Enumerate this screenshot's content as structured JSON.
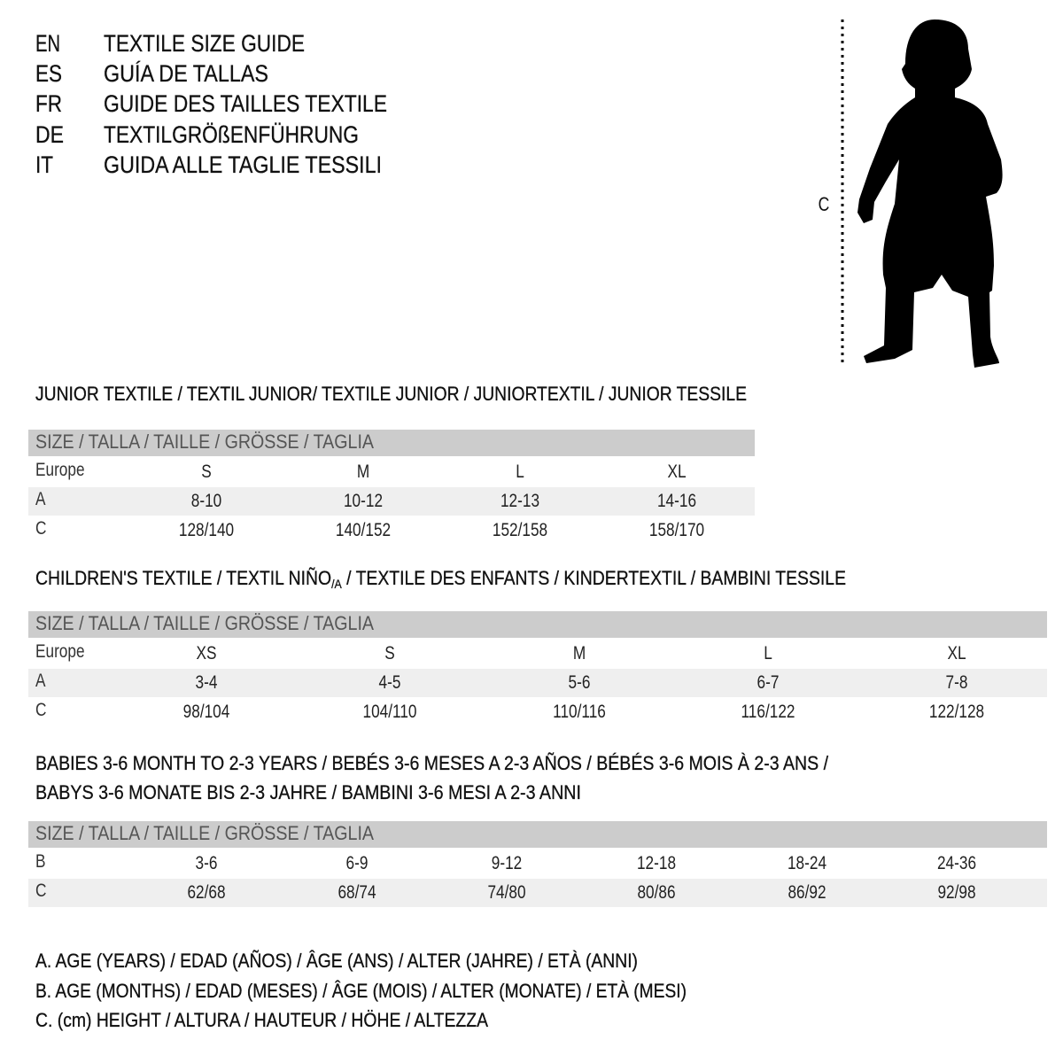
{
  "languages": [
    {
      "code": "EN",
      "title": "TEXTILE SIZE GUIDE"
    },
    {
      "code": "ES",
      "title": "GUÍA DE TALLAS"
    },
    {
      "code": "FR",
      "title": "GUIDE DES TAILLES TEXTILE"
    },
    {
      "code": "DE",
      "title": "TEXTILGRÖßENFÜHRUNG"
    },
    {
      "code": "IT",
      "title": "GUIDA ALLE TAGLIE TESSILI"
    }
  ],
  "figure": {
    "measure_label": "C",
    "icon": "child-silhouette"
  },
  "size_header": "SIZE / TALLA / TAILLE / GRÖSSE / TAGLIA",
  "junior": {
    "title": "JUNIOR TEXTILE / TEXTIL JUNIOR/ TEXTILE JUNIOR / JUNIORTEXTIL / JUNIOR TESSILE",
    "rows": [
      {
        "label": "Europe",
        "values": [
          "S",
          "M",
          "L",
          "XL"
        ]
      },
      {
        "label": "A",
        "values": [
          "8-10",
          "10-12",
          "12-13",
          "14-16"
        ]
      },
      {
        "label": "C",
        "values": [
          "128/140",
          "140/152",
          "152/158",
          "158/170"
        ]
      }
    ]
  },
  "children": {
    "title_pre": "CHILDREN'S TEXTILE / TEXTIL NIÑO",
    "title_sub": "/A",
    "title_post": " / TEXTILE DES ENFANTS / KINDERTEXTIL / BAMBINI TESSILE",
    "rows": [
      {
        "label": "Europe",
        "values": [
          "XS",
          "S",
          "M",
          "L",
          "XL"
        ]
      },
      {
        "label": "A",
        "values": [
          "3-4",
          "4-5",
          "5-6",
          "6-7",
          "7-8"
        ]
      },
      {
        "label": "C",
        "values": [
          "98/104",
          "104/110",
          "110/116",
          "116/122",
          "122/128"
        ]
      }
    ]
  },
  "babies": {
    "title_line1": "BABIES 3-6 MONTH TO 2-3 YEARS / BEBÉS 3-6 MESES A 2-3 AÑOS / BÉBÉS 3-6 MOIS À 2-3 ANS /",
    "title_line2": "BABYS 3-6 MONATE BIS 2-3 JAHRE / BAMBINI 3-6 MESI A 2-3 ANNI",
    "rows": [
      {
        "label": "B",
        "values": [
          "3-6",
          "6-9",
          "9-12",
          "12-18",
          "18-24",
          "24-36"
        ]
      },
      {
        "label": "C",
        "values": [
          "62/68",
          "68/74",
          "74/80",
          "80/86",
          "86/92",
          "92/98"
        ]
      }
    ]
  },
  "legend": [
    "A. AGE (YEARS) / EDAD (AÑOS) / ÂGE (ANS) / ALTER (JAHRE) / ETÀ (ANNI)",
    "B. AGE (MONTHS) / EDAD (MESES) / ÂGE (MOIS) / ALTER (MONATE) / ETÀ (MESI)",
    "C. (cm) HEIGHT / ALTURA / HAUTEUR / HÖHE / ALTEZZA"
  ],
  "colors": {
    "header_band": "#cccccc",
    "stripe": "#efefef",
    "text": "#111111"
  }
}
